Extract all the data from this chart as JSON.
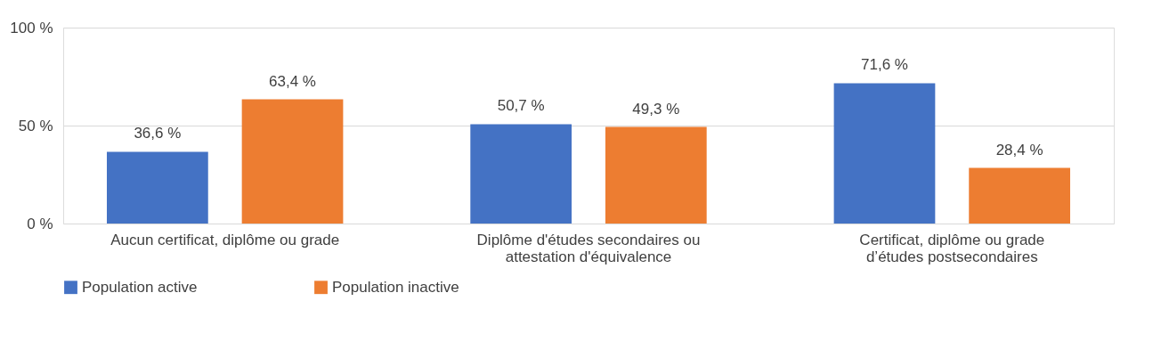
{
  "chart_data": {
    "type": "bar",
    "categories": [
      "Aucun certificat, diplôme ou grade",
      "Diplôme d'études secondaires ou attestation d'équivalence",
      "Certificat, diplôme ou grade d’études postsecondaires"
    ],
    "series": [
      {
        "name": "Population active",
        "color": "#4472c4",
        "values": [
          36.6,
          50.7,
          71.6
        ],
        "value_labels": [
          "36,6 %",
          "50,7 %",
          "71,6 %"
        ]
      },
      {
        "name": "Population inactive",
        "color": "#ed7d31",
        "values": [
          63.4,
          49.3,
          28.4
        ],
        "value_labels": [
          "63,4 %",
          "49,3 %",
          "28,4 %"
        ]
      }
    ],
    "ylim": [
      0,
      100
    ],
    "yticks": [
      {
        "value": 0,
        "label": "0 %"
      },
      {
        "value": 50,
        "label": "50 %"
      },
      {
        "value": 100,
        "label": "100 %"
      }
    ],
    "grid": "y",
    "legend": "bottom"
  }
}
